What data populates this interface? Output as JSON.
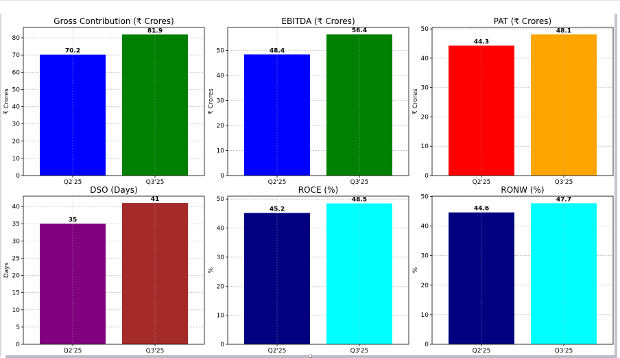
{
  "chart_data": [
    {
      "type": "bar",
      "title": "Gross Contribution (₹ Crores)",
      "xlabel": "",
      "ylabel": "₹ Crores",
      "categories": [
        "Q2'25",
        "Q3'25"
      ],
      "values": [
        70.2,
        81.9
      ],
      "value_labels": [
        "70.2",
        "81.9"
      ],
      "colors": [
        "#0000ff",
        "#008000"
      ],
      "ylim": [
        0,
        86
      ],
      "yticks": [
        0,
        10,
        20,
        30,
        40,
        50,
        60,
        70,
        80
      ],
      "grid": true,
      "legend": "none"
    },
    {
      "type": "bar",
      "title": "EBITDA (₹ Crores)",
      "xlabel": "",
      "ylabel": "₹ Crores",
      "categories": [
        "Q2'25",
        "Q3'25"
      ],
      "values": [
        48.4,
        56.4
      ],
      "value_labels": [
        "48.4",
        "56.4"
      ],
      "colors": [
        "#0000ff",
        "#008000"
      ],
      "ylim": [
        0,
        59.2
      ],
      "yticks": [
        0,
        10,
        20,
        30,
        40,
        50
      ],
      "grid": true,
      "legend": "none"
    },
    {
      "type": "bar",
      "title": "PAT (₹ Crores)",
      "xlabel": "",
      "ylabel": "₹ Crores",
      "categories": [
        "Q2'25",
        "Q3'25"
      ],
      "values": [
        44.3,
        48.1
      ],
      "value_labels": [
        "44.3",
        "48.1"
      ],
      "colors": [
        "#ff0000",
        "#ffa500"
      ],
      "ylim": [
        0,
        50.5
      ],
      "yticks": [
        0,
        10,
        20,
        30,
        40,
        50
      ],
      "grid": true,
      "legend": "none"
    },
    {
      "type": "bar",
      "title": "DSO (Days)",
      "xlabel": "",
      "ylabel": "Days",
      "categories": [
        "Q2'25",
        "Q3'25"
      ],
      "values": [
        35,
        41
      ],
      "value_labels": [
        "35",
        "41"
      ],
      "colors": [
        "#800080",
        "#a52a2a"
      ],
      "ylim": [
        0,
        43
      ],
      "yticks": [
        0,
        5,
        10,
        15,
        20,
        25,
        30,
        35,
        40
      ],
      "grid": true,
      "legend": "none"
    },
    {
      "type": "bar",
      "title": "ROCE (%)",
      "xlabel": "",
      "ylabel": "%",
      "categories": [
        "Q2'25",
        "Q3'25"
      ],
      "values": [
        45.2,
        48.5
      ],
      "value_labels": [
        "45.2",
        "48.5"
      ],
      "colors": [
        "#000080",
        "#00ffff"
      ],
      "ylim": [
        0,
        51
      ],
      "yticks": [
        0,
        10,
        20,
        30,
        40,
        50
      ],
      "grid": true,
      "legend": "none"
    },
    {
      "type": "bar",
      "title": "RONW (%)",
      "xlabel": "",
      "ylabel": "%",
      "categories": [
        "Q2'25",
        "Q3'25"
      ],
      "values": [
        44.6,
        47.7
      ],
      "value_labels": [
        "44.6",
        "47.7"
      ],
      "colors": [
        "#000080",
        "#00ffff"
      ],
      "ylim": [
        0,
        50.1
      ],
      "yticks": [
        0,
        10,
        20,
        30,
        40,
        50
      ],
      "grid": true,
      "legend": "none"
    }
  ]
}
